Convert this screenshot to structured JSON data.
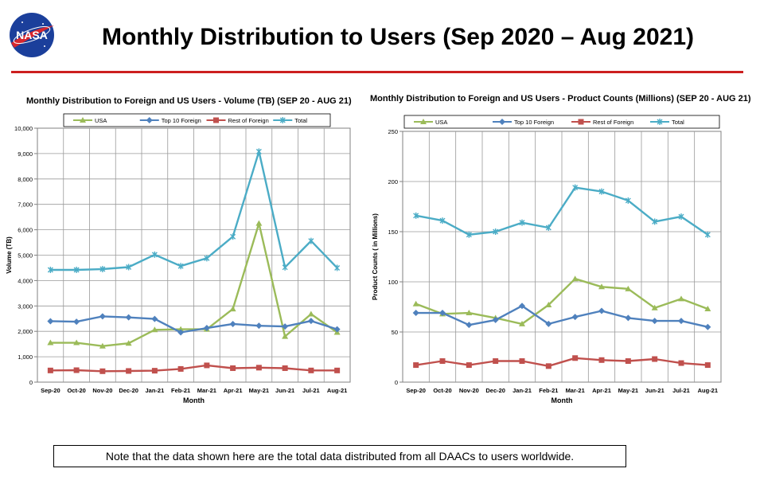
{
  "slide": {
    "title": "Monthly Distribution to Users (Sep 2020 – Aug 2021)",
    "logo_text": "NASA",
    "note": "Note that the data shown here are the total data distributed from all DAACs to users worldwide."
  },
  "colors": {
    "usa": "#9bbb59",
    "top10": "#4f81bd",
    "rest": "#c0504d",
    "total": "#4bacc6",
    "rule": "#cc1f1f"
  },
  "chart_data": [
    {
      "type": "line",
      "title": "Monthly Distribution to Foreign and US Users - Volume  (TB) (SEP 20 - AUG 21)",
      "xlabel": "Month",
      "ylabel": "Volume (TB)",
      "ylim": [
        0,
        10000
      ],
      "ytick_step": 1000,
      "ytick_labels": [
        "0",
        "1,000",
        "2,000",
        "3,000",
        "4,000",
        "5,000",
        "6,000",
        "7,000",
        "8,000",
        "9,000",
        "10,000"
      ],
      "categories": [
        "Sep-20",
        "Oct-20",
        "Nov-20",
        "Dec-20",
        "Jan-21",
        "Feb-21",
        "Mar-21",
        "Apr-21",
        "May-21",
        "Jun-21",
        "Jul-21",
        "Aug-21"
      ],
      "series": [
        {
          "name": "USA",
          "key": "usa",
          "values": [
            1550,
            1550,
            1420,
            1530,
            2060,
            2080,
            2080,
            2880,
            6250,
            1800,
            2680,
            1960
          ]
        },
        {
          "name": "Top 10 Foreign",
          "key": "top10",
          "values": [
            2400,
            2380,
            2590,
            2550,
            2490,
            1960,
            2130,
            2290,
            2220,
            2190,
            2410,
            2080
          ]
        },
        {
          "name": "Rest of Foreign",
          "key": "rest",
          "values": [
            460,
            470,
            430,
            440,
            450,
            520,
            660,
            550,
            570,
            550,
            460,
            460
          ]
        },
        {
          "name": "Total",
          "key": "total",
          "values": [
            4420,
            4420,
            4450,
            4530,
            5020,
            4570,
            4880,
            5730,
            9080,
            4520,
            5560,
            4500
          ]
        }
      ],
      "legend": "top",
      "grid": true
    },
    {
      "type": "line",
      "title": "Monthly Distribution to Foreign and US Users - Product Counts (Millions) (SEP 20 - AUG 21)",
      "xlabel": "Month",
      "ylabel": "Product Counts ( in Millions)",
      "ylim": [
        0,
        250
      ],
      "ytick_step": 50,
      "ytick_labels": [
        "0",
        "50",
        "100",
        "150",
        "200",
        "250"
      ],
      "categories": [
        "Sep-20",
        "Oct-20",
        "Nov-20",
        "Dec-20",
        "Jan-21",
        "Feb-21",
        "Mar-21",
        "Apr-21",
        "May-21",
        "Jun-21",
        "Jul-21",
        "Aug-21"
      ],
      "series": [
        {
          "name": "USA",
          "key": "usa",
          "values": [
            78,
            68,
            69,
            64,
            58,
            77,
            103,
            95,
            93,
            74,
            83,
            73
          ]
        },
        {
          "name": "Top 10 Foreign",
          "key": "top10",
          "values": [
            69,
            69,
            57,
            62,
            76,
            58,
            65,
            71,
            64,
            61,
            61,
            55
          ]
        },
        {
          "name": "Rest of Foreign",
          "key": "rest",
          "values": [
            17,
            21,
            17,
            21,
            21,
            16,
            24,
            22,
            21,
            23,
            19,
            17
          ]
        },
        {
          "name": "Total",
          "key": "total",
          "values": [
            166,
            161,
            147,
            150,
            159,
            154,
            194,
            190,
            181,
            160,
            165,
            147
          ]
        }
      ],
      "legend": "top",
      "grid": true
    }
  ]
}
